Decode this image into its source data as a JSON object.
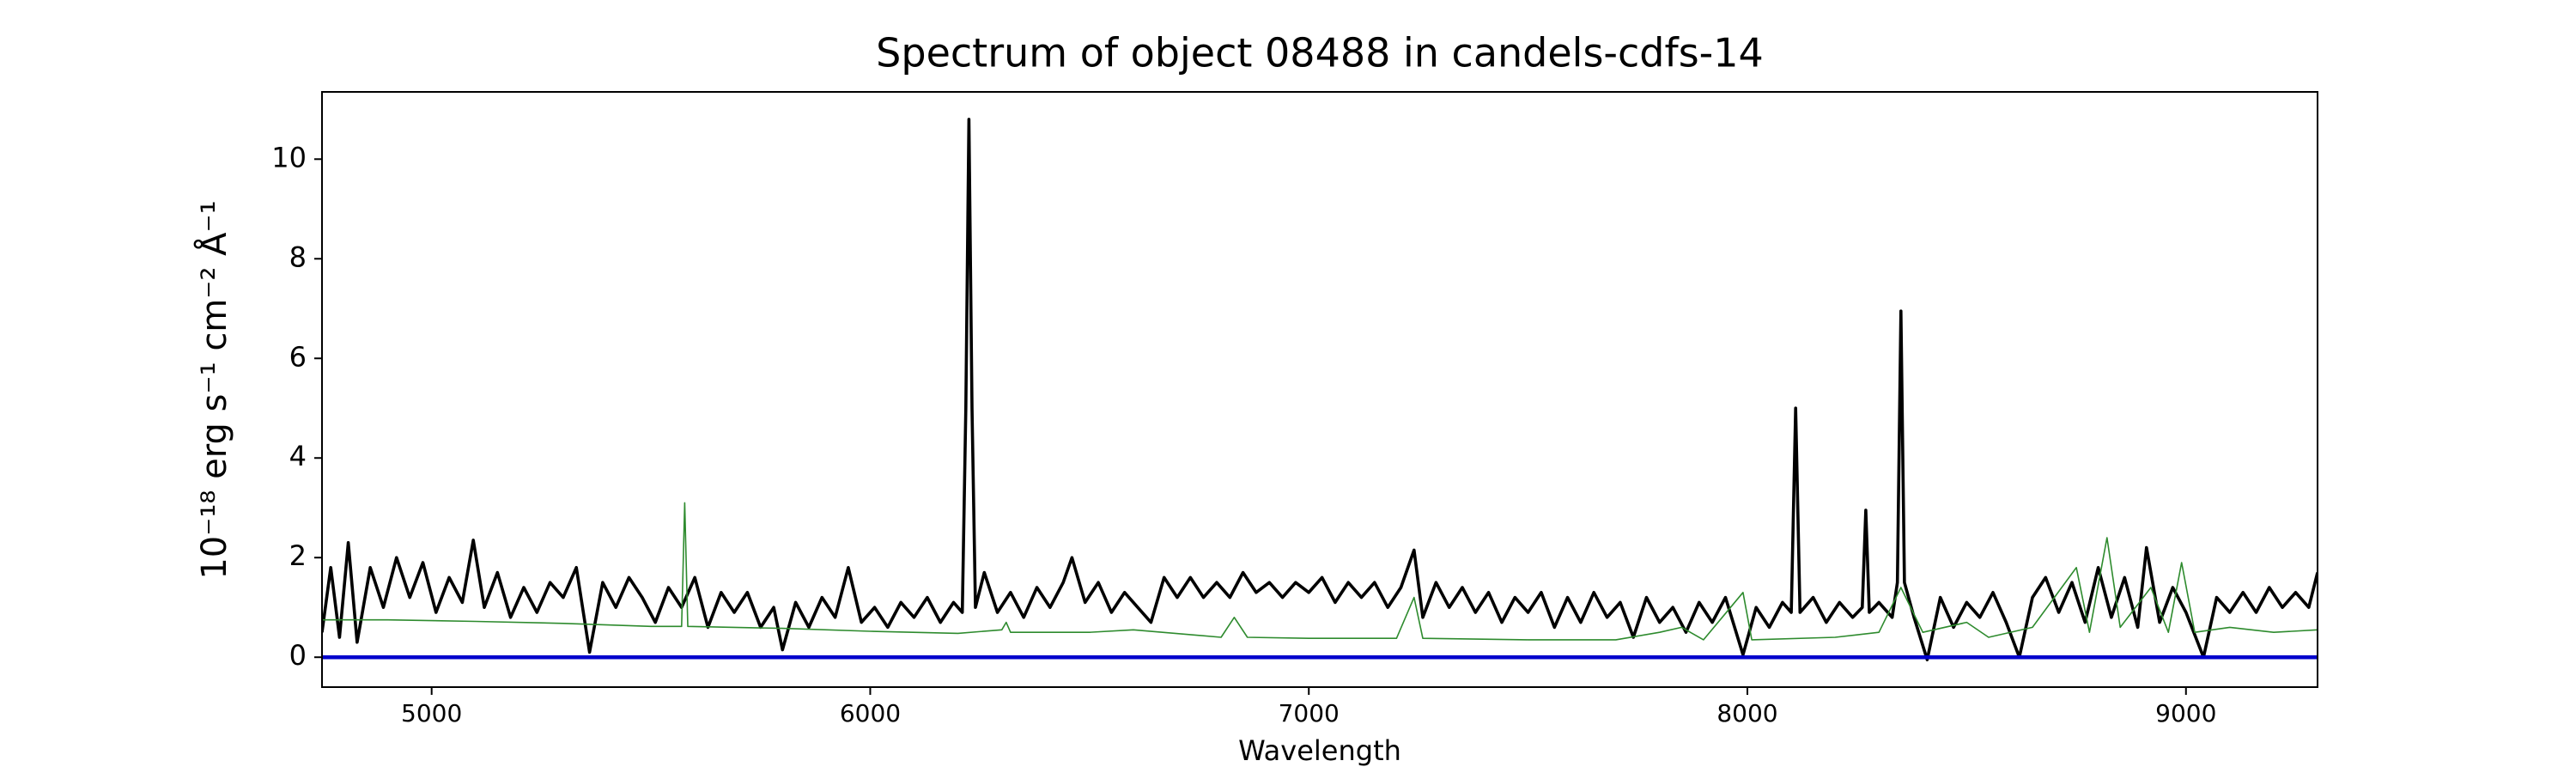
{
  "chart_data": {
    "type": "line",
    "title": "Spectrum of object 08488 in candels-cdfs-14",
    "xlabel": "Wavelength",
    "ylabel": "10⁻¹⁸ erg s⁻¹ cm⁻² Å⁻¹",
    "xlim": [
      4750,
      9300
    ],
    "ylim": [
      -0.6,
      11.35
    ],
    "xticks": [
      5000,
      6000,
      7000,
      8000,
      9000
    ],
    "yticks": [
      0,
      2,
      4,
      6,
      8,
      10
    ],
    "grid": false,
    "series": [
      {
        "color": "#000000",
        "x": [
          4750,
          4770,
          4790,
          4810,
          4830,
          4860,
          4890,
          4920,
          4950,
          4980,
          5010,
          5040,
          5070,
          5095,
          5120,
          5150,
          5180,
          5210,
          5240,
          5270,
          5300,
          5330,
          5360,
          5390,
          5420,
          5450,
          5480,
          5510,
          5540,
          5570,
          5600,
          5630,
          5660,
          5690,
          5720,
          5750,
          5780,
          5800,
          5830,
          5860,
          5890,
          5920,
          5950,
          5980,
          6010,
          6040,
          6070,
          6100,
          6130,
          6160,
          6190,
          6210,
          6218,
          6225,
          6232,
          6240,
          6260,
          6290,
          6320,
          6350,
          6380,
          6410,
          6440,
          6460,
          6490,
          6520,
          6550,
          6580,
          6610,
          6640,
          6670,
          6700,
          6730,
          6760,
          6790,
          6820,
          6850,
          6880,
          6910,
          6940,
          6970,
          7000,
          7030,
          7060,
          7090,
          7120,
          7150,
          7180,
          7210,
          7240,
          7260,
          7290,
          7320,
          7350,
          7380,
          7410,
          7440,
          7470,
          7500,
          7530,
          7560,
          7590,
          7620,
          7650,
          7680,
          7710,
          7740,
          7770,
          7800,
          7830,
          7860,
          7890,
          7920,
          7950,
          7990,
          8020,
          8050,
          8080,
          8100,
          8110,
          8120,
          8150,
          8180,
          8210,
          8240,
          8262,
          8270,
          8278,
          8300,
          8330,
          8342,
          8350,
          8358,
          8380,
          8410,
          8440,
          8470,
          8500,
          8530,
          8560,
          8590,
          8620,
          8650,
          8680,
          8710,
          8740,
          8770,
          8800,
          8830,
          8860,
          8890,
          8910,
          8940,
          8970,
          9000,
          9040,
          9070,
          9100,
          9130,
          9160,
          9190,
          9220,
          9250,
          9280,
          9300
        ],
        "values": [
          0.5,
          1.8,
          0.4,
          2.3,
          0.3,
          1.8,
          1.0,
          2.0,
          1.2,
          1.9,
          0.9,
          1.6,
          1.1,
          2.35,
          1.0,
          1.7,
          0.8,
          1.4,
          0.9,
          1.5,
          1.2,
          1.8,
          0.1,
          1.5,
          1.0,
          1.6,
          1.2,
          0.7,
          1.4,
          1.0,
          1.6,
          0.6,
          1.3,
          0.9,
          1.3,
          0.6,
          1.0,
          0.15,
          1.1,
          0.6,
          1.2,
          0.8,
          1.8,
          0.7,
          1.0,
          0.6,
          1.1,
          0.8,
          1.2,
          0.7,
          1.1,
          0.9,
          5.0,
          10.8,
          5.0,
          1.0,
          1.7,
          0.9,
          1.3,
          0.8,
          1.4,
          1.0,
          1.5,
          2.0,
          1.1,
          1.5,
          0.9,
          1.3,
          1.0,
          0.7,
          1.6,
          1.2,
          1.6,
          1.2,
          1.5,
          1.2,
          1.7,
          1.3,
          1.5,
          1.2,
          1.5,
          1.3,
          1.6,
          1.1,
          1.5,
          1.2,
          1.5,
          1.0,
          1.4,
          2.15,
          0.8,
          1.5,
          1.0,
          1.4,
          0.9,
          1.3,
          0.7,
          1.2,
          0.9,
          1.3,
          0.6,
          1.2,
          0.7,
          1.3,
          0.8,
          1.1,
          0.4,
          1.2,
          0.7,
          1.0,
          0.5,
          1.1,
          0.7,
          1.2,
          0.05,
          1.0,
          0.6,
          1.1,
          0.9,
          5.0,
          0.9,
          1.2,
          0.7,
          1.1,
          0.8,
          1.0,
          2.95,
          0.9,
          1.1,
          0.8,
          1.5,
          6.95,
          1.5,
          0.8,
          -0.05,
          1.2,
          0.6,
          1.1,
          0.8,
          1.3,
          0.7,
          0.0,
          1.2,
          1.6,
          0.9,
          1.5,
          0.7,
          1.8,
          0.8,
          1.6,
          0.6,
          2.2,
          0.7,
          1.4,
          0.9,
          0.0,
          1.2,
          0.9,
          1.3,
          0.9,
          1.4,
          1.0,
          1.3,
          1.0,
          1.7
        ]
      },
      {
        "color": "#2e8b2e",
        "x": [
          4750,
          4900,
          5100,
          5300,
          5500,
          5570,
          5577,
          5584,
          5800,
          6000,
          6200,
          6300,
          6310,
          6320,
          6500,
          6600,
          6800,
          6830,
          6860,
          7000,
          7200,
          7240,
          7260,
          7500,
          7700,
          7800,
          7850,
          7900,
          7990,
          8010,
          8200,
          8300,
          8350,
          8400,
          8500,
          8550,
          8650,
          8750,
          8780,
          8820,
          8850,
          8920,
          8960,
          8990,
          9020,
          9100,
          9200,
          9300
        ],
        "values": [
          0.75,
          0.75,
          0.72,
          0.68,
          0.62,
          0.62,
          3.1,
          0.62,
          0.58,
          0.52,
          0.48,
          0.55,
          0.7,
          0.5,
          0.5,
          0.55,
          0.4,
          0.8,
          0.4,
          0.38,
          0.38,
          1.2,
          0.38,
          0.35,
          0.35,
          0.5,
          0.6,
          0.35,
          1.3,
          0.35,
          0.4,
          0.5,
          1.4,
          0.5,
          0.7,
          0.4,
          0.6,
          1.8,
          0.5,
          2.4,
          0.6,
          1.4,
          0.5,
          1.9,
          0.5,
          0.6,
          0.5,
          0.55
        ]
      },
      {
        "color": "#0000cc",
        "x": [
          4750,
          9300
        ],
        "values": [
          0,
          0
        ]
      }
    ]
  }
}
